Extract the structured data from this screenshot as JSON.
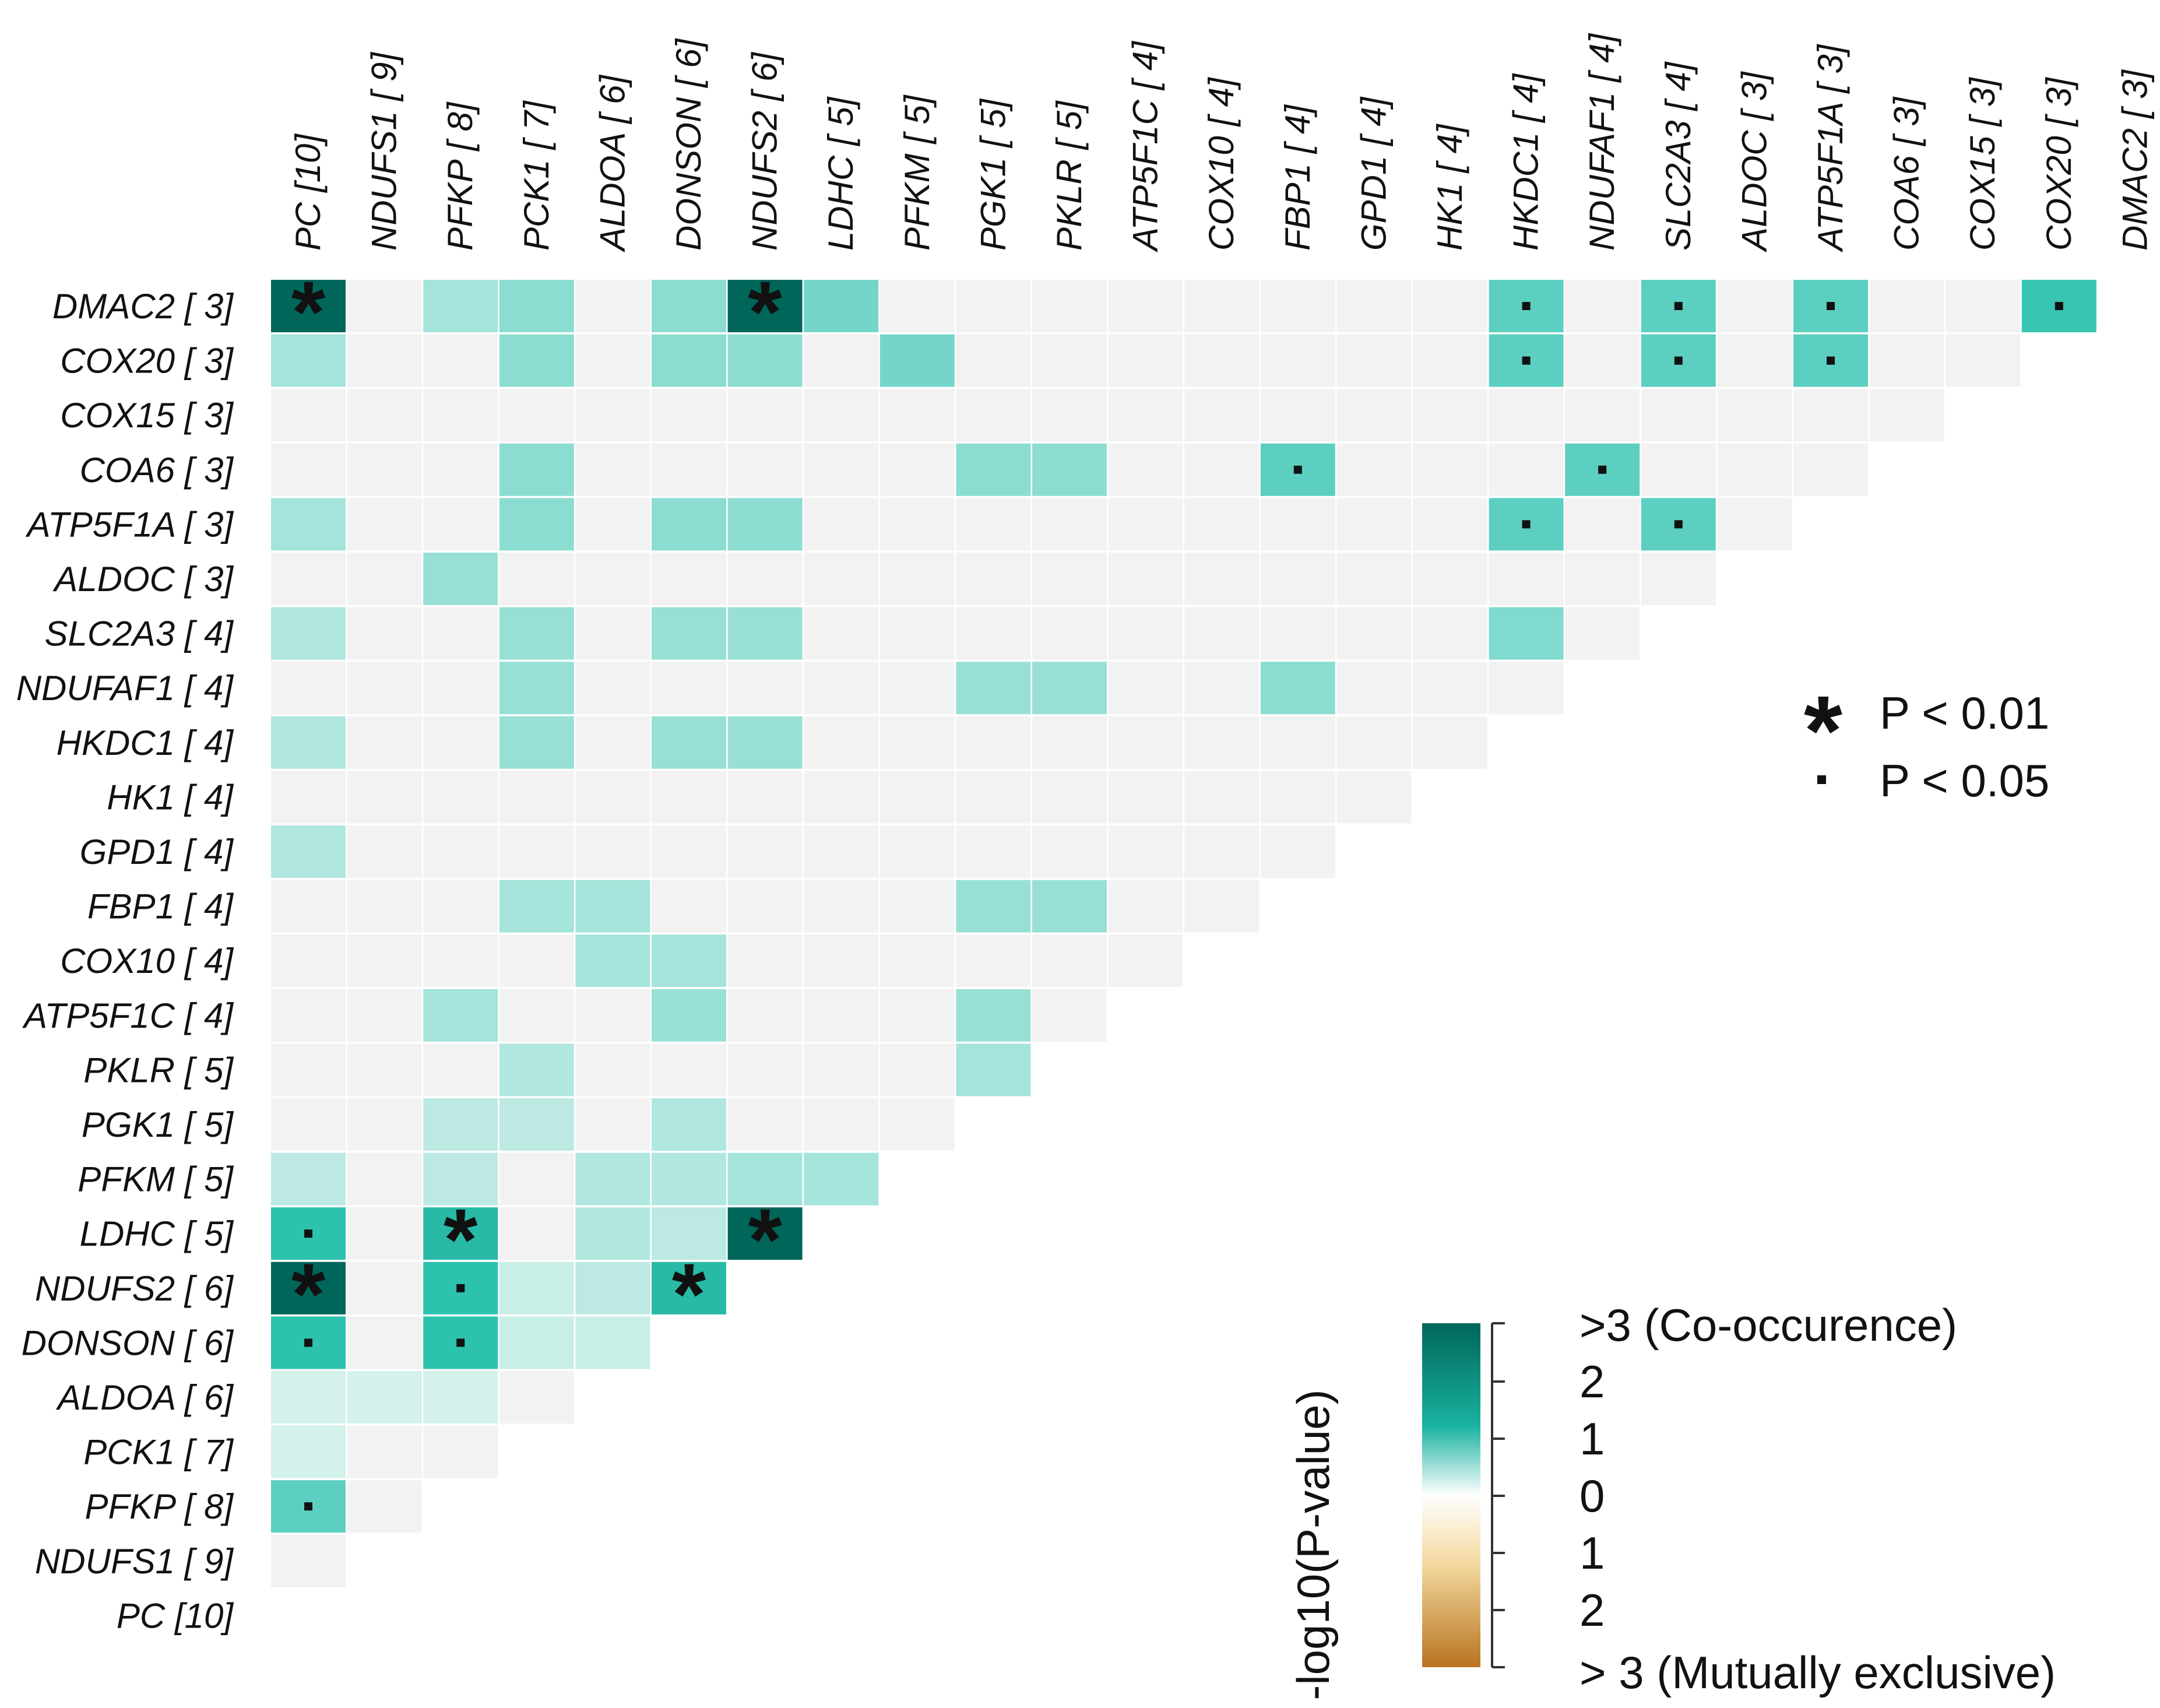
{
  "chart_data": {
    "type": "heatmap",
    "title": "",
    "genes": [
      "PC [10]",
      "NDUFS1 [ 9]",
      "PFKP [ 8]",
      "PCK1 [ 7]",
      "ALDOA [ 6]",
      "DONSON [ 6]",
      "NDUFS2 [ 6]",
      "LDHC [ 5]",
      "PFKM [ 5]",
      "PGK1 [ 5]",
      "PKLR [ 5]",
      "ATP5F1C [ 4]",
      "COX10 [ 4]",
      "FBP1 [ 4]",
      "GPD1 [ 4]",
      "HK1 [ 4]",
      "HKDC1 [ 4]",
      "NDUFAF1 [ 4]",
      "SLC2A3 [ 4]",
      "ALDOC [ 3]",
      "ATP5F1A [ 3]",
      "COA6 [ 3]",
      "COX15 [ 3]",
      "COX20 [ 3]",
      "DMAC2 [ 3]"
    ],
    "value_scale": "-log10(P-value); positive = co-occurrence, negative = mutual exclusivity",
    "cells": [
      {
        "row": "DMAC2 [ 3]",
        "col": "PC [10]",
        "value": 3.2,
        "sig": "p<0.01"
      },
      {
        "row": "DMAC2 [ 3]",
        "col": "PFKP [ 8]",
        "value": 1.0,
        "sig": ""
      },
      {
        "row": "DMAC2 [ 3]",
        "col": "PCK1 [ 7]",
        "value": 1.2,
        "sig": ""
      },
      {
        "row": "DMAC2 [ 3]",
        "col": "DONSON [ 6]",
        "value": 1.2,
        "sig": ""
      },
      {
        "row": "DMAC2 [ 3]",
        "col": "NDUFS2 [ 6]",
        "value": 3.2,
        "sig": "p<0.01"
      },
      {
        "row": "DMAC2 [ 3]",
        "col": "LDHC [ 5]",
        "value": 1.4,
        "sig": ""
      },
      {
        "row": "DMAC2 [ 3]",
        "col": "HKDC1 [ 4]",
        "value": 1.6,
        "sig": "p<0.05"
      },
      {
        "row": "DMAC2 [ 3]",
        "col": "SLC2A3 [ 4]",
        "value": 1.6,
        "sig": "p<0.05"
      },
      {
        "row": "DMAC2 [ 3]",
        "col": "ATP5F1A [ 3]",
        "value": 1.6,
        "sig": "p<0.05"
      },
      {
        "row": "DMAC2 [ 3]",
        "col": "COX20 [ 3]",
        "value": 1.9,
        "sig": "p<0.05"
      },
      {
        "row": "COX20 [ 3]",
        "col": "PC [10]",
        "value": 1.0,
        "sig": ""
      },
      {
        "row": "COX20 [ 3]",
        "col": "PCK1 [ 7]",
        "value": 1.2,
        "sig": ""
      },
      {
        "row": "COX20 [ 3]",
        "col": "DONSON [ 6]",
        "value": 1.2,
        "sig": ""
      },
      {
        "row": "COX20 [ 3]",
        "col": "NDUFS2 [ 6]",
        "value": 1.2,
        "sig": ""
      },
      {
        "row": "COX20 [ 3]",
        "col": "PFKM [ 5]",
        "value": 1.4,
        "sig": ""
      },
      {
        "row": "COX20 [ 3]",
        "col": "HKDC1 [ 4]",
        "value": 1.6,
        "sig": "p<0.05"
      },
      {
        "row": "COX20 [ 3]",
        "col": "SLC2A3 [ 4]",
        "value": 1.6,
        "sig": "p<0.05"
      },
      {
        "row": "COX20 [ 3]",
        "col": "ATP5F1A [ 3]",
        "value": 1.6,
        "sig": "p<0.05"
      },
      {
        "row": "COA6 [ 3]",
        "col": "PCK1 [ 7]",
        "value": 1.2,
        "sig": ""
      },
      {
        "row": "COA6 [ 3]",
        "col": "PGK1 [ 5]",
        "value": 1.2,
        "sig": ""
      },
      {
        "row": "COA6 [ 3]",
        "col": "PKLR [ 5]",
        "value": 1.2,
        "sig": ""
      },
      {
        "row": "COA6 [ 3]",
        "col": "FBP1 [ 4]",
        "value": 1.6,
        "sig": "p<0.05"
      },
      {
        "row": "COA6 [ 3]",
        "col": "NDUFAF1 [ 4]",
        "value": 1.6,
        "sig": "p<0.05"
      },
      {
        "row": "ATP5F1A [ 3]",
        "col": "PC [10]",
        "value": 1.0,
        "sig": ""
      },
      {
        "row": "ATP5F1A [ 3]",
        "col": "PCK1 [ 7]",
        "value": 1.2,
        "sig": ""
      },
      {
        "row": "ATP5F1A [ 3]",
        "col": "DONSON [ 6]",
        "value": 1.2,
        "sig": ""
      },
      {
        "row": "ATP5F1A [ 3]",
        "col": "NDUFS2 [ 6]",
        "value": 1.2,
        "sig": ""
      },
      {
        "row": "ATP5F1A [ 3]",
        "col": "HKDC1 [ 4]",
        "value": 1.6,
        "sig": "p<0.05"
      },
      {
        "row": "ATP5F1A [ 3]",
        "col": "SLC2A3 [ 4]",
        "value": 1.6,
        "sig": "p<0.05"
      },
      {
        "row": "ALDOC [ 3]",
        "col": "PFKP [ 8]",
        "value": 1.1,
        "sig": ""
      },
      {
        "row": "SLC2A3 [ 4]",
        "col": "PC [10]",
        "value": 0.9,
        "sig": ""
      },
      {
        "row": "SLC2A3 [ 4]",
        "col": "PCK1 [ 7]",
        "value": 1.1,
        "sig": ""
      },
      {
        "row": "SLC2A3 [ 4]",
        "col": "DONSON [ 6]",
        "value": 1.1,
        "sig": ""
      },
      {
        "row": "SLC2A3 [ 4]",
        "col": "NDUFS2 [ 6]",
        "value": 1.1,
        "sig": ""
      },
      {
        "row": "SLC2A3 [ 4]",
        "col": "HKDC1 [ 4]",
        "value": 1.3,
        "sig": ""
      },
      {
        "row": "NDUFAF1 [ 4]",
        "col": "PCK1 [ 7]",
        "value": 1.1,
        "sig": ""
      },
      {
        "row": "NDUFAF1 [ 4]",
        "col": "PGK1 [ 5]",
        "value": 1.1,
        "sig": ""
      },
      {
        "row": "NDUFAF1 [ 4]",
        "col": "PKLR [ 5]",
        "value": 1.1,
        "sig": ""
      },
      {
        "row": "NDUFAF1 [ 4]",
        "col": "FBP1 [ 4]",
        "value": 1.2,
        "sig": ""
      },
      {
        "row": "HKDC1 [ 4]",
        "col": "PC [10]",
        "value": 0.9,
        "sig": ""
      },
      {
        "row": "HKDC1 [ 4]",
        "col": "PCK1 [ 7]",
        "value": 1.1,
        "sig": ""
      },
      {
        "row": "HKDC1 [ 4]",
        "col": "DONSON [ 6]",
        "value": 1.1,
        "sig": ""
      },
      {
        "row": "HKDC1 [ 4]",
        "col": "NDUFS2 [ 6]",
        "value": 1.1,
        "sig": ""
      },
      {
        "row": "GPD1 [ 4]",
        "col": "PC [10]",
        "value": 0.9,
        "sig": ""
      },
      {
        "row": "FBP1 [ 4]",
        "col": "PCK1 [ 7]",
        "value": 1.0,
        "sig": ""
      },
      {
        "row": "FBP1 [ 4]",
        "col": "ALDOA [ 6]",
        "value": 1.0,
        "sig": ""
      },
      {
        "row": "FBP1 [ 4]",
        "col": "PGK1 [ 5]",
        "value": 1.1,
        "sig": ""
      },
      {
        "row": "FBP1 [ 4]",
        "col": "PKLR [ 5]",
        "value": 1.1,
        "sig": ""
      },
      {
        "row": "COX10 [ 4]",
        "col": "ALDOA [ 6]",
        "value": 1.0,
        "sig": ""
      },
      {
        "row": "COX10 [ 4]",
        "col": "DONSON [ 6]",
        "value": 1.0,
        "sig": ""
      },
      {
        "row": "ATP5F1C [ 4]",
        "col": "PFKP [ 8]",
        "value": 1.0,
        "sig": ""
      },
      {
        "row": "ATP5F1C [ 4]",
        "col": "DONSON [ 6]",
        "value": 1.1,
        "sig": ""
      },
      {
        "row": "ATP5F1C [ 4]",
        "col": "PGK1 [ 5]",
        "value": 1.1,
        "sig": ""
      },
      {
        "row": "PKLR [ 5]",
        "col": "PCK1 [ 7]",
        "value": 0.9,
        "sig": ""
      },
      {
        "row": "PKLR [ 5]",
        "col": "PGK1 [ 5]",
        "value": 1.0,
        "sig": ""
      },
      {
        "row": "PGK1 [ 5]",
        "col": "PFKP [ 8]",
        "value": 0.8,
        "sig": ""
      },
      {
        "row": "PGK1 [ 5]",
        "col": "PCK1 [ 7]",
        "value": 0.8,
        "sig": ""
      },
      {
        "row": "PGK1 [ 5]",
        "col": "DONSON [ 6]",
        "value": 0.9,
        "sig": ""
      },
      {
        "row": "PFKM [ 5]",
        "col": "PC [10]",
        "value": 0.8,
        "sig": ""
      },
      {
        "row": "PFKM [ 5]",
        "col": "PFKP [ 8]",
        "value": 0.8,
        "sig": ""
      },
      {
        "row": "PFKM [ 5]",
        "col": "ALDOA [ 6]",
        "value": 0.9,
        "sig": ""
      },
      {
        "row": "PFKM [ 5]",
        "col": "DONSON [ 6]",
        "value": 0.9,
        "sig": ""
      },
      {
        "row": "PFKM [ 5]",
        "col": "NDUFS2 [ 6]",
        "value": 1.0,
        "sig": ""
      },
      {
        "row": "PFKM [ 5]",
        "col": "LDHC [ 5]",
        "value": 1.0,
        "sig": ""
      },
      {
        "row": "LDHC [ 5]",
        "col": "PC [10]",
        "value": 2.0,
        "sig": "p<0.05"
      },
      {
        "row": "LDHC [ 5]",
        "col": "PFKP [ 8]",
        "value": 2.1,
        "sig": "p<0.01"
      },
      {
        "row": "LDHC [ 5]",
        "col": "ALDOA [ 6]",
        "value": 0.9,
        "sig": ""
      },
      {
        "row": "LDHC [ 5]",
        "col": "DONSON [ 6]",
        "value": 0.8,
        "sig": ""
      },
      {
        "row": "LDHC [ 5]",
        "col": "NDUFS2 [ 6]",
        "value": 3.2,
        "sig": "p<0.01"
      },
      {
        "row": "NDUFS2 [ 6]",
        "col": "PC [10]",
        "value": 3.2,
        "sig": "p<0.01"
      },
      {
        "row": "NDUFS2 [ 6]",
        "col": "PFKP [ 8]",
        "value": 2.0,
        "sig": "p<0.05"
      },
      {
        "row": "NDUFS2 [ 6]",
        "col": "PCK1 [ 7]",
        "value": 0.7,
        "sig": ""
      },
      {
        "row": "NDUFS2 [ 6]",
        "col": "ALDOA [ 6]",
        "value": 0.8,
        "sig": ""
      },
      {
        "row": "NDUFS2 [ 6]",
        "col": "DONSON [ 6]",
        "value": 2.1,
        "sig": "p<0.01"
      },
      {
        "row": "DONSON [ 6]",
        "col": "PC [10]",
        "value": 2.0,
        "sig": "p<0.05"
      },
      {
        "row": "DONSON [ 6]",
        "col": "PFKP [ 8]",
        "value": 2.0,
        "sig": "p<0.05"
      },
      {
        "row": "DONSON [ 6]",
        "col": "PCK1 [ 7]",
        "value": 0.7,
        "sig": ""
      },
      {
        "row": "DONSON [ 6]",
        "col": "ALDOA [ 6]",
        "value": 0.7,
        "sig": ""
      },
      {
        "row": "ALDOA [ 6]",
        "col": "PC [10]",
        "value": 0.6,
        "sig": ""
      },
      {
        "row": "ALDOA [ 6]",
        "col": "NDUFS1 [ 9]",
        "value": 0.6,
        "sig": ""
      },
      {
        "row": "ALDOA [ 6]",
        "col": "PFKP [ 8]",
        "value": 0.6,
        "sig": ""
      },
      {
        "row": "PCK1 [ 7]",
        "col": "PC [10]",
        "value": 0.6,
        "sig": ""
      },
      {
        "row": "PFKP [ 8]",
        "col": "PC [10]",
        "value": 1.6,
        "sig": "p<0.05"
      }
    ],
    "legend": {
      "significance": [
        {
          "symbol": "*",
          "label": "P < 0.01"
        },
        {
          "symbol": "▪",
          "label": "P < 0.05"
        }
      ],
      "colorbar_title": "-log10(P-value)",
      "colorbar_labels": [
        ">3 (Co-occurence)",
        "2",
        "1",
        "0",
        "1",
        "2",
        "> 3 (Mutually exclusive)"
      ]
    },
    "colors": {
      "background_cell": "#f2f2f2",
      "co_occurrence_low": "#d4f1ec",
      "co_occurrence_mid": "#2cc2ae",
      "co_occurrence_high": "#00665a",
      "mutual_exclusive_low": "#f7e7c4",
      "mutual_exclusive_high": "#b8741f"
    }
  }
}
